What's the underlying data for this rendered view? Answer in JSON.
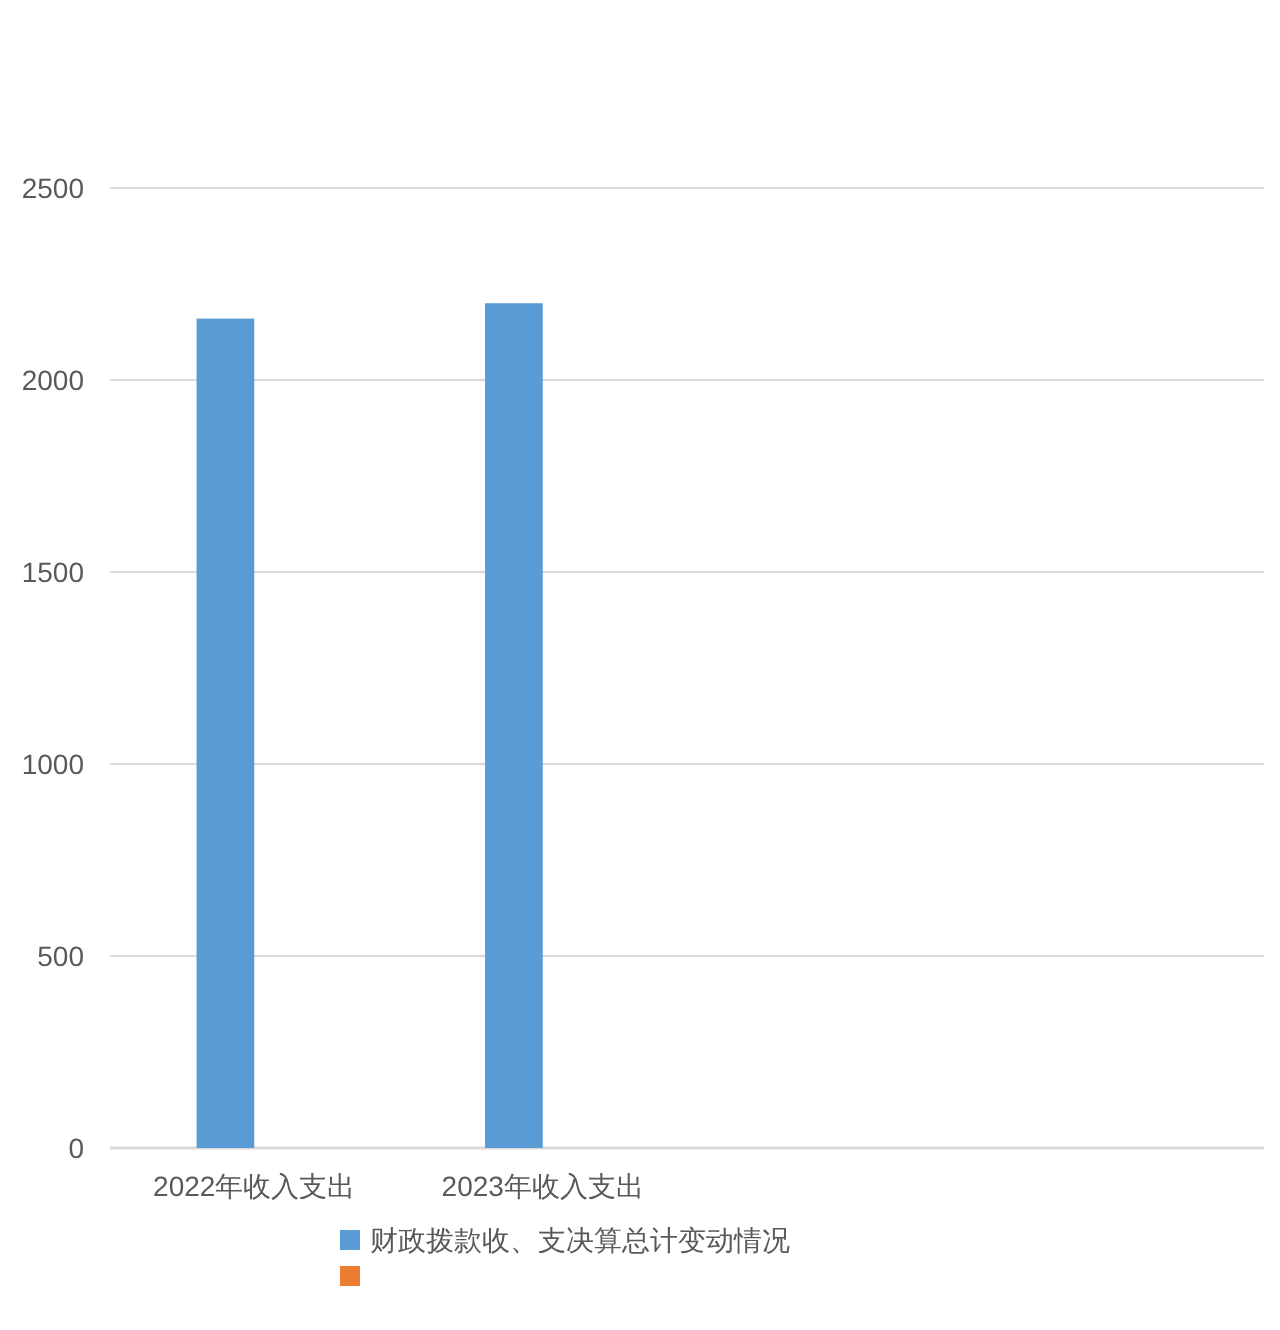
{
  "chart_data": {
    "type": "bar",
    "categories": [
      "2022年收入支出",
      "2023年收入支出",
      null,
      null
    ],
    "series": [
      {
        "name": "财政拨款收、支决算总计变动情况",
        "color": "#5b9bd5",
        "values": [
          2160,
          2200,
          null,
          null
        ]
      },
      {
        "color": "#ed7d31",
        "values": [
          null,
          null,
          null,
          null
        ]
      }
    ],
    "ylim": [
      0,
      2500
    ],
    "yticks": [
      0,
      500,
      1000,
      1500,
      2000,
      2500
    ],
    "grid": "y",
    "legend": "bottom"
  }
}
